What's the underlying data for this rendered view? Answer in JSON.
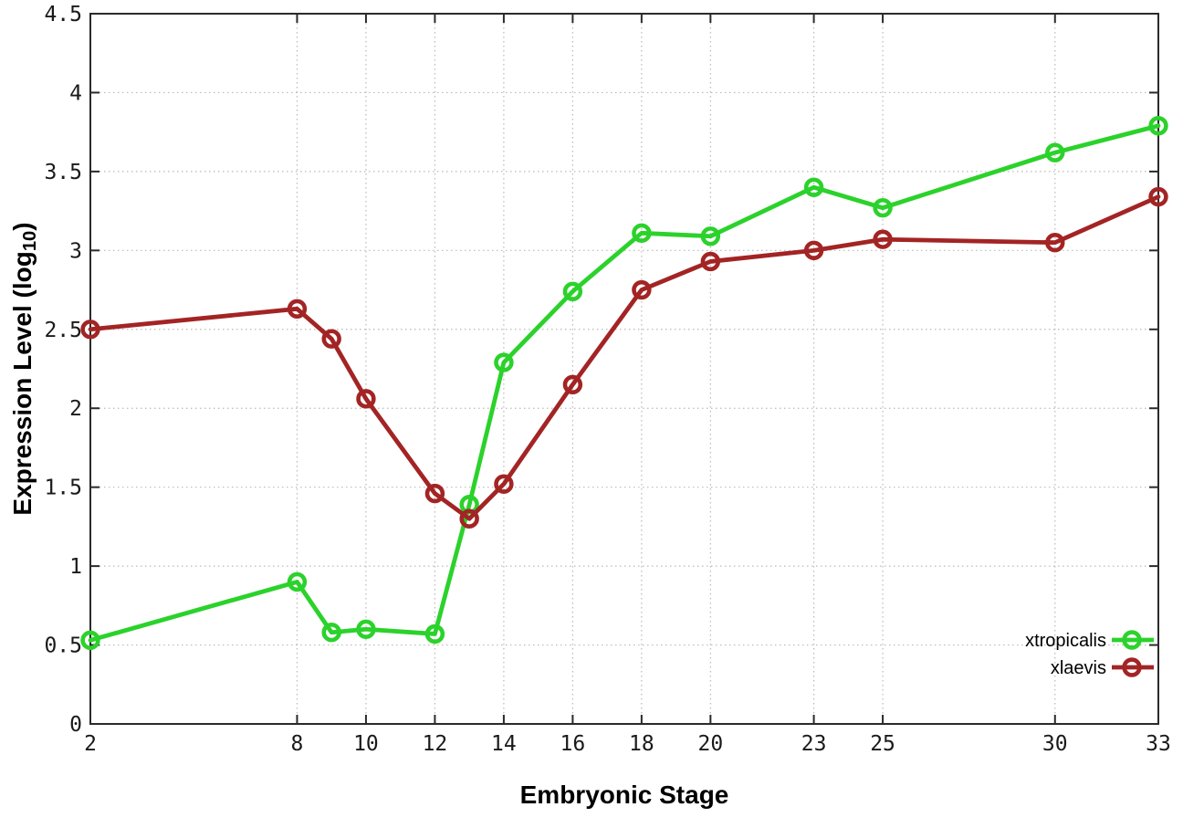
{
  "chart_data": {
    "type": "line",
    "title": "",
    "xlabel": "Embryonic Stage",
    "ylabel": "Expression Level (log10)",
    "ylabel_parts": {
      "main": "Expression Level (log",
      "sub": "10",
      "close": ")"
    },
    "xlim": [
      2,
      33
    ],
    "ylim": [
      0,
      4.5
    ],
    "x_ticks": [
      2,
      8,
      10,
      12,
      14,
      16,
      18,
      20,
      23,
      25,
      30,
      33
    ],
    "y_ticks": [
      "0",
      "0.5",
      "1",
      "1.5",
      "2",
      "2.5",
      "3",
      "3.5",
      "4",
      "4.5"
    ],
    "grid": true,
    "legend_position": "inside-right-bottom",
    "x": [
      2,
      8,
      9,
      10,
      12,
      13,
      14,
      16,
      18,
      20,
      23,
      25,
      30,
      33
    ],
    "series": [
      {
        "name": "xtropicalis",
        "color": "#2bd22b",
        "marker": "open-circle",
        "values": [
          0.53,
          0.9,
          0.58,
          0.6,
          0.57,
          1.39,
          2.29,
          2.74,
          3.11,
          3.09,
          3.4,
          3.27,
          3.62,
          3.79
        ]
      },
      {
        "name": "xlaevis",
        "color": "#a32424",
        "marker": "open-circle",
        "values": [
          2.5,
          2.63,
          2.44,
          2.06,
          1.46,
          1.3,
          1.52,
          2.15,
          2.75,
          2.93,
          3.0,
          3.07,
          3.05,
          3.34
        ]
      }
    ],
    "style": {
      "background": "#ffffff",
      "border_color": "#2a2a2a",
      "grid_color": "#b9b9b9",
      "tick_label_color": "#1a1a1a",
      "line_width": 4.8,
      "marker_radius": 8.4,
      "marker_stroke": 4.6
    }
  }
}
